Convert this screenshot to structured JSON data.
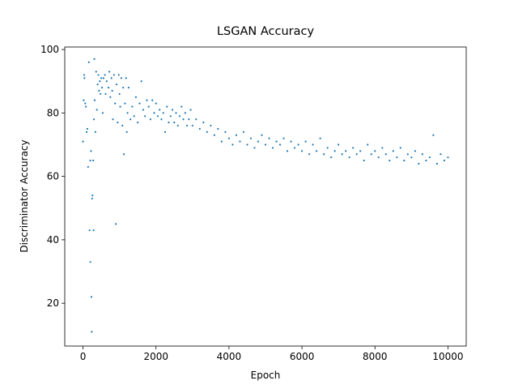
{
  "chart_data": {
    "type": "scatter",
    "title": "LSGAN Accuracy",
    "x_label": "Epoch",
    "y_label": "Discriminator Accuracy",
    "xlim": [
      -500,
      10500
    ],
    "ylim": [
      6.5,
      100.8
    ],
    "xticks": [
      0,
      2000,
      4000,
      6000,
      8000,
      10000
    ],
    "yticks": [
      20,
      40,
      60,
      80,
      100
    ],
    "grid": false,
    "series": [
      {
        "color": "#1f77b4",
        "x": [
          0,
          20,
          30,
          40,
          60,
          80,
          100,
          120,
          140,
          160,
          180,
          200,
          200,
          220,
          230,
          240,
          250,
          260,
          280,
          290,
          300,
          310,
          320,
          340,
          360,
          380,
          400,
          420,
          440,
          460,
          480,
          500,
          520,
          540,
          560,
          600,
          620,
          650,
          700,
          720,
          750,
          780,
          800,
          820,
          850,
          880,
          900,
          920,
          950,
          980,
          1000,
          1020,
          1050,
          1080,
          1100,
          1120,
          1150,
          1180,
          1200,
          1220,
          1250,
          1300,
          1350,
          1400,
          1450,
          1500,
          1550,
          1600,
          1650,
          1700,
          1750,
          1800,
          1850,
          1900,
          1950,
          2000,
          2050,
          2100,
          2150,
          2200,
          2250,
          2300,
          2350,
          2400,
          2450,
          2500,
          2550,
          2600,
          2650,
          2700,
          2750,
          2800,
          2850,
          2900,
          2950,
          3000,
          3100,
          3200,
          3300,
          3400,
          3500,
          3600,
          3700,
          3800,
          3900,
          4000,
          4100,
          4200,
          4300,
          4400,
          4500,
          4600,
          4700,
          4800,
          4900,
          5000,
          5100,
          5200,
          5300,
          5400,
          5500,
          5600,
          5700,
          5800,
          5900,
          6000,
          6100,
          6200,
          6300,
          6400,
          6500,
          6600,
          6700,
          6800,
          6900,
          7000,
          7100,
          7200,
          7300,
          7400,
          7500,
          7600,
          7700,
          7800,
          7900,
          8000,
          8100,
          8200,
          8300,
          8400,
          8500,
          8600,
          8700,
          8800,
          8900,
          9000,
          9100,
          9200,
          9300,
          9400,
          9500,
          9600,
          9700,
          9800,
          9900,
          10000
        ],
        "y": [
          71,
          84,
          92,
          91,
          83,
          82,
          74,
          75,
          63,
          96,
          43,
          65,
          33,
          68,
          22,
          11,
          53,
          54,
          65,
          43,
          78,
          97,
          84,
          74,
          93,
          81,
          89,
          92,
          87,
          90,
          86,
          91,
          88,
          80,
          91,
          92,
          86,
          90,
          88,
          93,
          85,
          91,
          87,
          78,
          92,
          83,
          45,
          89,
          77,
          92,
          86,
          82,
          91,
          76,
          88,
          67,
          83,
          91,
          74,
          80,
          88,
          78,
          82,
          79,
          85,
          77,
          83,
          90,
          81,
          79,
          84,
          82,
          78,
          84,
          80,
          83,
          79,
          81,
          78,
          80,
          74,
          82,
          77,
          79,
          81,
          77,
          80,
          76,
          79,
          82,
          78,
          80,
          76,
          78,
          81,
          76,
          78,
          75,
          77,
          74,
          76,
          73,
          75,
          71,
          74,
          72,
          70,
          73,
          71,
          74,
          70,
          72,
          69,
          71,
          73,
          70,
          72,
          69,
          71,
          70,
          72,
          68,
          71,
          69,
          70,
          68,
          71,
          67,
          70,
          68,
          72,
          67,
          69,
          66,
          68,
          70,
          67,
          68,
          66,
          69,
          67,
          68,
          65,
          70,
          67,
          68,
          66,
          69,
          67,
          65,
          68,
          66,
          69,
          65,
          67,
          66,
          68,
          64,
          67,
          65,
          66,
          73,
          64,
          67,
          65,
          66
        ]
      }
    ]
  }
}
